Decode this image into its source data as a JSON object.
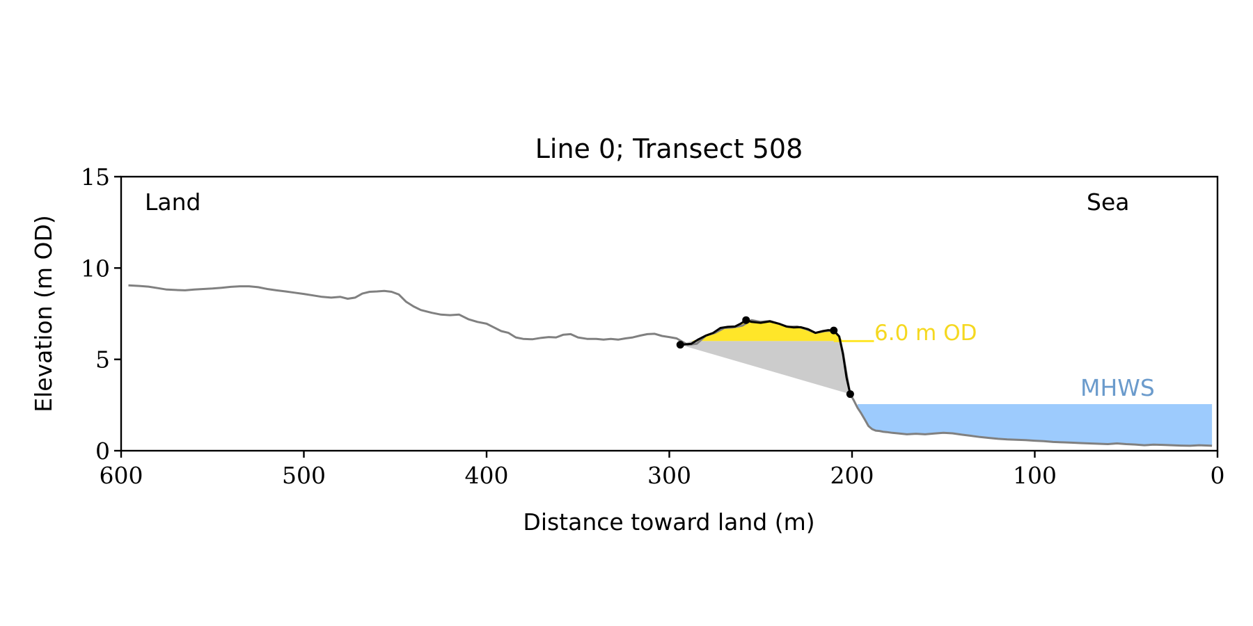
{
  "chart_data": {
    "type": "line",
    "title": "Line 0; Transect 508",
    "xlabel": "Distance toward land (m)",
    "ylabel": "Elevation (m OD)",
    "xlim": [
      600,
      0
    ],
    "ylim": [
      0,
      15
    ],
    "x_ticks": [
      600,
      500,
      400,
      300,
      200,
      100,
      0
    ],
    "y_ticks": [
      0,
      5,
      10,
      15
    ],
    "x_tick_labels": [
      "600",
      "500",
      "400",
      "300",
      "200",
      "100",
      "0"
    ],
    "y_tick_labels": [
      "0",
      "5",
      "10",
      "15"
    ],
    "x_axis_inverted": true,
    "grid": false,
    "annotations": {
      "land_label": "Land",
      "sea_label": "Sea",
      "od_label": "6.0 m OD",
      "mhws_label": "MHWS"
    },
    "reference_levels": {
      "od_level": 6.0,
      "od_line_x": [
        210,
        188
      ],
      "mhws_level": 2.55,
      "mhws_x_range": [
        197,
        3
      ]
    },
    "colors": {
      "profile": "#808080",
      "dune": "#000000",
      "dune_fill": "#ffe629",
      "wedge_fill": "#cccccc",
      "mhws_fill": "#9dcbfd",
      "mhws_text": "#6b9bcc",
      "od_text": "#f5d820"
    },
    "series": [
      {
        "x": [
          596,
          590,
          585,
          580,
          575,
          570,
          565,
          560,
          555,
          550,
          545,
          540,
          535,
          530,
          525,
          520,
          515,
          510,
          505,
          500,
          495,
          490,
          485,
          480,
          476,
          472,
          468,
          464,
          460,
          456,
          452,
          448,
          444,
          440,
          436,
          430,
          425,
          420,
          415,
          410,
          405,
          400,
          396,
          392,
          388,
          384,
          380,
          375,
          370,
          366,
          362,
          358,
          354,
          350,
          345,
          340,
          336,
          332,
          328,
          324,
          320,
          316,
          312,
          308,
          304,
          300,
          296,
          290,
          285,
          280,
          275,
          270,
          265,
          260,
          255,
          250,
          245,
          240,
          235,
          230,
          225,
          220,
          215,
          210,
          207,
          205,
          203,
          201,
          199,
          197,
          195,
          193,
          191,
          189,
          187,
          185,
          183,
          181,
          178,
          175,
          170,
          165,
          160,
          155,
          150,
          145,
          140,
          135,
          130,
          125,
          120,
          115,
          110,
          105,
          100,
          95,
          90,
          85,
          80,
          75,
          70,
          65,
          60,
          55,
          50,
          45,
          40,
          35,
          30,
          25,
          20,
          15,
          10,
          5,
          3
        ],
        "y": [
          9.05,
          9.02,
          8.98,
          8.9,
          8.82,
          8.8,
          8.78,
          8.82,
          8.85,
          8.88,
          8.92,
          8.97,
          9.0,
          9.0,
          8.95,
          8.85,
          8.78,
          8.72,
          8.65,
          8.58,
          8.5,
          8.42,
          8.38,
          8.42,
          8.32,
          8.38,
          8.6,
          8.7,
          8.72,
          8.75,
          8.7,
          8.55,
          8.15,
          7.9,
          7.7,
          7.55,
          7.45,
          7.42,
          7.45,
          7.2,
          7.05,
          6.95,
          6.75,
          6.55,
          6.45,
          6.2,
          6.12,
          6.1,
          6.18,
          6.22,
          6.2,
          6.35,
          6.38,
          6.2,
          6.12,
          6.12,
          6.08,
          6.12,
          6.08,
          6.15,
          6.2,
          6.3,
          6.38,
          6.4,
          6.28,
          6.22,
          6.15,
          5.8,
          5.85,
          6.3,
          6.45,
          6.72,
          6.75,
          6.85,
          7.15,
          7.05,
          7.1,
          6.95,
          6.78,
          6.8,
          6.65,
          6.45,
          6.55,
          6.58,
          6.25,
          5.4,
          4.2,
          3.1,
          2.75,
          2.35,
          2.05,
          1.7,
          1.35,
          1.18,
          1.1,
          1.08,
          1.04,
          1.02,
          0.98,
          0.95,
          0.9,
          0.93,
          0.9,
          0.94,
          0.98,
          0.95,
          0.88,
          0.82,
          0.75,
          0.7,
          0.65,
          0.62,
          0.6,
          0.58,
          0.55,
          0.52,
          0.48,
          0.46,
          0.44,
          0.42,
          0.4,
          0.38,
          0.36,
          0.4,
          0.36,
          0.34,
          0.3,
          0.33,
          0.32,
          0.3,
          0.28,
          0.27,
          0.3,
          0.28,
          0.27
        ]
      },
      {
        "x": [
          294,
          288,
          284,
          280,
          276,
          272,
          268,
          264,
          261,
          258,
          255,
          250,
          245,
          240,
          236,
          232,
          228,
          224,
          220,
          216,
          213,
          210,
          207,
          205,
          203,
          201
        ],
        "y": [
          5.8,
          5.85,
          6.1,
          6.3,
          6.45,
          6.72,
          6.78,
          6.8,
          6.95,
          7.15,
          7.05,
          7.0,
          7.08,
          6.95,
          6.8,
          6.75,
          6.76,
          6.65,
          6.45,
          6.55,
          6.6,
          6.58,
          6.25,
          5.3,
          4.0,
          3.1
        ]
      }
    ],
    "key_points": {
      "x": [
        294,
        258,
        210,
        201
      ],
      "y": [
        5.8,
        7.15,
        6.58,
        3.1
      ]
    }
  }
}
